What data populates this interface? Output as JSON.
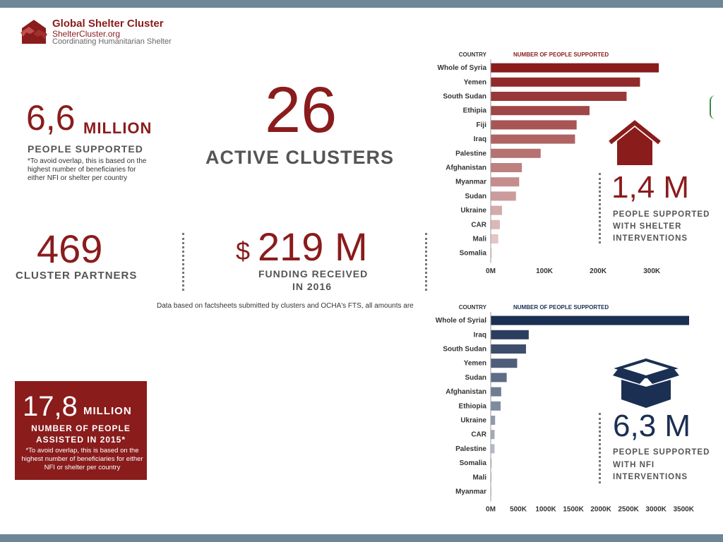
{
  "header": {
    "title": "Global Shelter Cluster",
    "site": "ShelterCluster.org",
    "tagline": "Coordinating Humanitarian Shelter"
  },
  "stats": {
    "people_supported": {
      "value": "6,6",
      "unit": "MILLION",
      "label": "PEOPLE SUPPORTED",
      "note": "*To avoid overlap, this is based on the highest number of beneficiaries for either NFI or shelter per country"
    },
    "active_clusters": {
      "value": "26",
      "label": "ACTIVE CLUSTERS"
    },
    "cluster_partners": {
      "value": "469",
      "label": "CLUSTER PARTNERS"
    },
    "funding": {
      "currency": "$",
      "value": "219 M",
      "label_line1": "FUNDING RECEIVED",
      "label_line2": "IN 2016"
    },
    "footnote": "Data based on factsheets submitted by clusters and OCHA's FTS, all amounts are",
    "assisted_2015": {
      "value": "17,8",
      "unit": "MILLION",
      "label_line1": "NUMBER OF PEOPLE",
      "label_line2": "ASSISTED IN 2015*",
      "note": "*To avoid overlap, this is based on the highest number of beneficiaries for either NFI or shelter per country"
    },
    "shelter": {
      "value": "1,4 M",
      "label_line1": "PEOPLE SUPPORTED",
      "label_line2": "WITH SHELTER",
      "label_line3": "INTERVENTIONS"
    },
    "nfi": {
      "value": "6,3 M",
      "label_line1": "PEOPLE SUPPORTED",
      "label_line2": "WITH NFI",
      "label_line3": "INTERVENTIONS"
    }
  },
  "icons": {
    "logo": "hands-house-logo-icon",
    "shelter": "house-icon",
    "nfi": "open-box-icon"
  },
  "colors": {
    "red": "#8a1c1c",
    "navy": "#1b2f52",
    "bar_header_red": "#8a1c1c",
    "bar_header_navy": "#1b2f52"
  },
  "chart_data": [
    {
      "type": "bar",
      "orientation": "horizontal",
      "header_left": "COUNTRY",
      "header_right": "NUMBER OF PEOPLE SUPPORTED",
      "categories": [
        "Whole of Syria",
        "Yemen",
        "South Sudan",
        "Ethipia",
        "Fiji",
        "Iraq",
        "Palestine",
        "Afghanistan",
        "Myanmar",
        "Sudan",
        "Ukraine",
        "CAR",
        "Mali",
        "Somalia"
      ],
      "values": [
        313000,
        278000,
        253000,
        184000,
        160000,
        157000,
        93000,
        58000,
        53000,
        47000,
        21000,
        17000,
        14000,
        2000
      ],
      "xlim": [
        0,
        330000
      ],
      "ticks": [
        0,
        100000,
        200000,
        300000
      ],
      "tick_labels": [
        "0M",
        "100K",
        "200K",
        "300K"
      ],
      "color_start": "#8a1c1c",
      "color_end": "#ead4d4"
    },
    {
      "type": "bar",
      "orientation": "horizontal",
      "header_left": "COUNTRY",
      "header_right": "NUMBER OF PEOPLE SUPPORTED",
      "categories": [
        "Whole of Syrial",
        "Iraq",
        "South Sudan",
        "Yemen",
        "Sudan",
        "Afghanistan",
        "Ethiopia",
        "Ukraine",
        "CAR",
        "Palestine",
        "Somalia",
        "Mali",
        "Myanmar"
      ],
      "values": [
        3600000,
        690000,
        640000,
        480000,
        290000,
        190000,
        180000,
        80000,
        70000,
        70000,
        15000,
        15000,
        15000
      ],
      "xlim": [
        0,
        3600000
      ],
      "ticks": [
        0,
        500000,
        1000000,
        1500000,
        2000000,
        2500000,
        3000000,
        3500000
      ],
      "tick_labels": [
        "0M",
        "500K",
        "1000K",
        "1500K",
        "2000K",
        "2500K",
        "3000K",
        "3500K"
      ],
      "color_start": "#1b2f52",
      "color_end": "#e5e7ec"
    }
  ]
}
